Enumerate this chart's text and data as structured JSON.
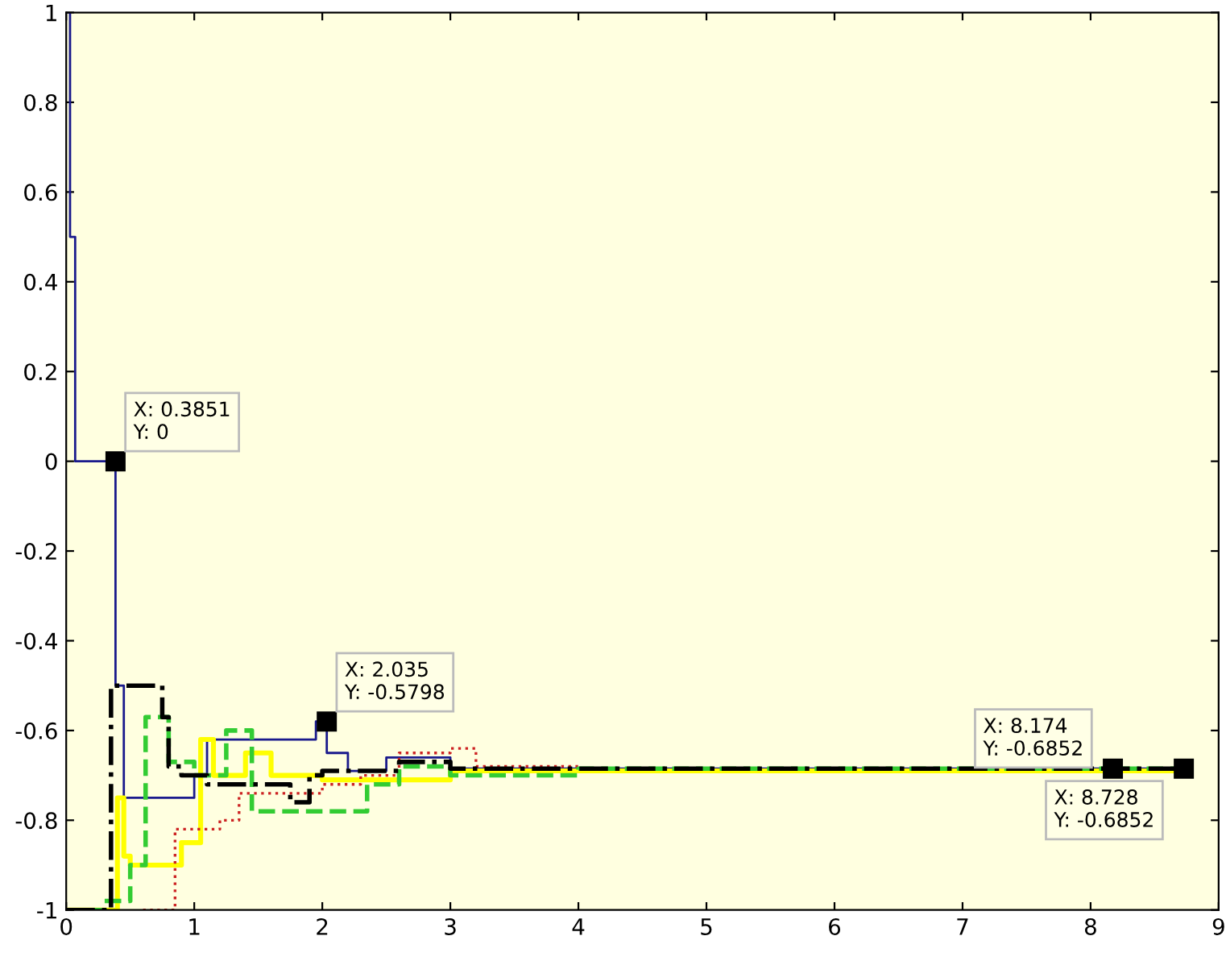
{
  "chart_data": {
    "type": "step",
    "xlim": [
      0,
      9
    ],
    "ylim": [
      -1,
      1
    ],
    "xticks": [
      0,
      1,
      2,
      3,
      4,
      5,
      6,
      7,
      8,
      9
    ],
    "yticks": [
      -1,
      -0.8,
      -0.6,
      -0.4,
      -0.2,
      0,
      0.2,
      0.4,
      0.6,
      0.8,
      1
    ],
    "grid": false,
    "legend": false,
    "series": [
      {
        "color": "#1a1a8c",
        "line_style": "solid",
        "x": [
          0,
          0.03,
          0.07,
          0.385,
          0.45,
          1.0,
          1.1,
          1.95,
          2.035,
          2.2,
          2.5,
          3.0,
          8.728
        ],
        "values": [
          1,
          0.5,
          0,
          -0.5,
          -0.75,
          -0.7,
          -0.62,
          -0.58,
          -0.65,
          -0.69,
          -0.66,
          -0.685,
          -0.685
        ]
      },
      {
        "color": "#ffff00",
        "line_style": "solid",
        "x": [
          0,
          0.4,
          0.45,
          0.5,
          0.75,
          0.9,
          1.05,
          1.15,
          1.4,
          1.6,
          2.0,
          3.0,
          8.728
        ],
        "values": [
          -1,
          -0.75,
          -0.88,
          -0.9,
          -0.9,
          -0.85,
          -0.62,
          -0.7,
          -0.65,
          -0.7,
          -0.71,
          -0.69,
          -0.685
        ]
      },
      {
        "color": "#cc2222",
        "line_style": "dotted",
        "x": [
          0.6,
          0.85,
          1.2,
          1.35,
          2.0,
          2.3,
          2.6,
          3.0,
          3.2,
          4.0
        ],
        "values": [
          -1,
          -0.82,
          -0.8,
          -0.74,
          -0.72,
          -0.7,
          -0.65,
          -0.64,
          -0.68,
          -0.685
        ]
      },
      {
        "color": "#33cc33",
        "line_style": "dashed",
        "x": [
          0,
          0.3,
          0.5,
          0.62,
          0.8,
          1.0,
          1.25,
          1.45,
          2.35,
          2.6,
          3.0,
          4.0,
          8.728
        ],
        "values": [
          -1,
          -0.98,
          -0.9,
          -0.57,
          -0.67,
          -0.7,
          -0.6,
          -0.78,
          -0.72,
          -0.68,
          -0.7,
          -0.685,
          -0.685
        ]
      },
      {
        "color": "#000000",
        "line_style": "dashdot",
        "x": [
          0,
          0.35,
          0.75,
          0.8,
          0.9,
          1.1,
          1.75,
          1.9,
          2.0,
          2.6,
          3.0,
          8.728
        ],
        "values": [
          -1,
          -0.5,
          -0.57,
          -0.68,
          -0.7,
          -0.72,
          -0.76,
          -0.7,
          -0.69,
          -0.67,
          -0.685,
          -0.685
        ]
      }
    ],
    "annotations": [
      {
        "text": "X: 0.3851\nY: 0",
        "x": 0.3851,
        "y": 0
      },
      {
        "text": "X: 2.035\nY: -0.5798",
        "x": 2.035,
        "y": -0.5798
      },
      {
        "text": "X: 8.174\nY: -0.6852",
        "x": 8.174,
        "y": -0.6852
      },
      {
        "text": "X: 8.728\nY: -0.6852",
        "x": 8.728,
        "y": -0.6852
      }
    ]
  }
}
